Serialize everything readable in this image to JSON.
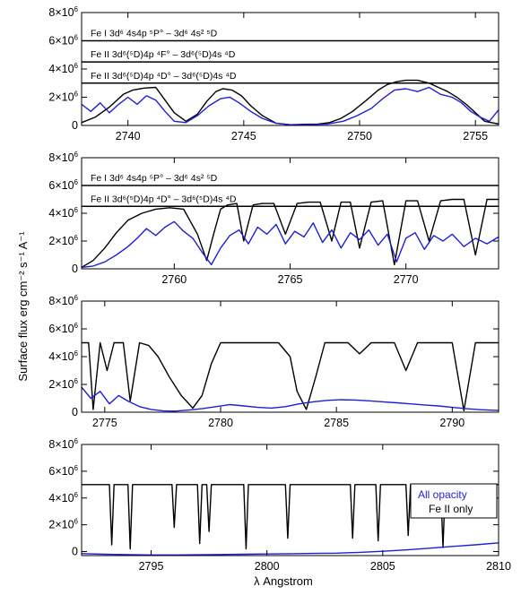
{
  "figure": {
    "ylabel": "Surface flux erg cm⁻² s⁻¹ A⁻¹",
    "xlabel": "λ Angstrom"
  },
  "legend": [
    {
      "label": "All opacity",
      "color": "#1f1fd6"
    },
    {
      "label": "Fe II only",
      "color": "#000000"
    }
  ],
  "chart_data": [
    {
      "type": "line",
      "xlim": [
        2738,
        2756
      ],
      "ylim": [
        0,
        8000000
      ],
      "xticks": [
        2740,
        2745,
        2750,
        2755
      ],
      "xtick_labels": [
        "2740",
        "2745",
        "2750",
        "2755"
      ],
      "yticks": [
        0,
        2000000,
        4000000,
        6000000,
        8000000
      ],
      "ytick_labels": [
        {
          "mant": "0",
          "exp": ""
        },
        {
          "mant": "2×10",
          "exp": "6"
        },
        {
          "mant": "4×10",
          "exp": "6"
        },
        {
          "mant": "6×10",
          "exp": "6"
        },
        {
          "mant": "8×10",
          "exp": "6"
        }
      ],
      "annotations": [
        {
          "text": "Fe I 3d⁶ 4s4p ⁵P° – 3d⁶ 4s² ⁵D",
          "level": 6000000
        },
        {
          "text": "Fe II 3d⁶(⁵D)4p ⁴F° – 3d⁶(⁵D)4s ⁴D",
          "level": 4500000
        },
        {
          "text": "Fe II 3d⁶(⁵D)4p ⁴D° – 3d⁶(⁵D)4s ⁴D",
          "level": 3000000
        }
      ],
      "series": [
        {
          "color": "#000000",
          "x": [
            2738,
            2738.6,
            2739.2,
            2739.8,
            2740.2,
            2740.7,
            2741.2,
            2741.6,
            2742.0,
            2742.5,
            2743.0,
            2743.4,
            2743.8,
            2744.1,
            2744.5,
            2744.9,
            2745.3,
            2745.8,
            2746.4,
            2747.0,
            2747.6,
            2748.2,
            2748.7,
            2749.2,
            2749.7,
            2750.3,
            2750.8,
            2751.2,
            2751.6,
            2752.0,
            2752.5,
            2753.0,
            2753.4,
            2753.8,
            2754.2,
            2754.6,
            2755.0,
            2755.4,
            2756
          ],
          "y": [
            200000,
            600000,
            1300000,
            2200000,
            2500000,
            2650000,
            2700000,
            1800000,
            900000,
            300000,
            800000,
            1700000,
            2400000,
            2600000,
            2500000,
            2100000,
            1400000,
            700000,
            150000,
            50000,
            80000,
            100000,
            200000,
            500000,
            1000000,
            1800000,
            2500000,
            2900000,
            3100000,
            3200000,
            3200000,
            3000000,
            2700000,
            2400000,
            2000000,
            1500000,
            900000,
            300000,
            100000
          ]
        },
        {
          "color": "#1f1fd6",
          "x": [
            2738,
            2738.4,
            2738.8,
            2739.2,
            2739.6,
            2740.0,
            2740.4,
            2740.8,
            2741.2,
            2741.6,
            2742.0,
            2742.5,
            2743.0,
            2743.5,
            2744.0,
            2744.4,
            2744.8,
            2745.3,
            2745.8,
            2746.4,
            2747.0,
            2747.8,
            2748.6,
            2749.3,
            2749.9,
            2750.5,
            2751.0,
            2751.5,
            2752.0,
            2752.5,
            2753.0,
            2753.5,
            2754.0,
            2754.4,
            2754.8,
            2755.2,
            2755.6,
            2756
          ],
          "y": [
            1500000,
            1000000,
            1600000,
            900000,
            1500000,
            2000000,
            1500000,
            2100000,
            1800000,
            1000000,
            300000,
            200000,
            700000,
            1400000,
            1900000,
            2000000,
            1600000,
            1000000,
            500000,
            150000,
            50000,
            60000,
            100000,
            300000,
            700000,
            1200000,
            1900000,
            2500000,
            2600000,
            2400000,
            2700000,
            2200000,
            2000000,
            1600000,
            1000000,
            600000,
            300000,
            1100000
          ]
        }
      ]
    },
    {
      "type": "line",
      "xlim": [
        2756,
        2774
      ],
      "ylim": [
        0,
        8000000
      ],
      "xticks": [
        2760,
        2765,
        2770
      ],
      "xtick_labels": [
        "2760",
        "2765",
        "2770"
      ],
      "yticks": [
        0,
        2000000,
        4000000,
        6000000,
        8000000
      ],
      "ytick_labels": [
        {
          "mant": "0",
          "exp": ""
        },
        {
          "mant": "2×10",
          "exp": "6"
        },
        {
          "mant": "4×10",
          "exp": "6"
        },
        {
          "mant": "6×10",
          "exp": "6"
        },
        {
          "mant": "8×10",
          "exp": "6"
        }
      ],
      "annotations": [
        {
          "text": "Fe I 3d⁶ 4s4p ⁵P° – 3d⁶ 4s² ⁵D",
          "level": 6000000
        },
        {
          "text": "Fe II 3d⁶(⁵D)4p ⁴D° – 3d⁶(⁵D)4s ⁴D",
          "level": 4500000
        }
      ],
      "series": [
        {
          "color": "#000000",
          "x": [
            2756,
            2756.5,
            2757,
            2757.5,
            2758,
            2758.6,
            2759.2,
            2759.8,
            2760.4,
            2761.0,
            2761.4,
            2761.7,
            2762.0,
            2762.3,
            2762.7,
            2763.0,
            2763.4,
            2763.8,
            2764.3,
            2764.8,
            2765.3,
            2765.8,
            2766.3,
            2766.8,
            2767.2,
            2767.6,
            2768.0,
            2768.5,
            2769.0,
            2769.5,
            2770.0,
            2770.5,
            2771.0,
            2771.5,
            2772.0,
            2772.5,
            2773.0,
            2773.5,
            2774
          ],
          "y": [
            100000,
            600000,
            1500000,
            2600000,
            3500000,
            4000000,
            4300000,
            4400000,
            4300000,
            2500000,
            600000,
            2500000,
            4300000,
            4600000,
            4700000,
            2000000,
            4600000,
            4700000,
            4700000,
            2500000,
            4700000,
            4800000,
            4800000,
            2000000,
            4800000,
            4800000,
            1500000,
            4800000,
            4900000,
            300000,
            4900000,
            4900000,
            2000000,
            4900000,
            5000000,
            5000000,
            1000000,
            5000000,
            5000000
          ]
        },
        {
          "color": "#1f1fd6",
          "x": [
            2756,
            2756.5,
            2757,
            2757.5,
            2758.0,
            2758.4,
            2758.8,
            2759.2,
            2759.6,
            2760.0,
            2760.4,
            2760.8,
            2761.2,
            2761.6,
            2762.0,
            2762.4,
            2762.8,
            2763.2,
            2763.6,
            2764.0,
            2764.4,
            2764.8,
            2765.2,
            2765.6,
            2766.0,
            2766.4,
            2766.8,
            2767.2,
            2767.6,
            2768.0,
            2768.4,
            2768.8,
            2769.2,
            2769.6,
            2770.0,
            2770.4,
            2770.8,
            2771.2,
            2771.6,
            2772.0,
            2772.5,
            2773.0,
            2773.5,
            2774
          ],
          "y": [
            100000,
            200000,
            500000,
            1000000,
            1600000,
            2200000,
            2900000,
            2400000,
            3000000,
            3400000,
            2700000,
            2200000,
            1200000,
            300000,
            1500000,
            2400000,
            2800000,
            1800000,
            3000000,
            2500000,
            3200000,
            1800000,
            2700000,
            2300000,
            3300000,
            1900000,
            2800000,
            1500000,
            2600000,
            2100000,
            2800000,
            1700000,
            2500000,
            500000,
            2200000,
            2600000,
            1400000,
            2400000,
            2000000,
            2500000,
            1600000,
            2200000,
            1800000,
            2300000
          ]
        }
      ]
    },
    {
      "type": "line",
      "xlim": [
        2774,
        2792
      ],
      "ylim": [
        0,
        8000000
      ],
      "xticks": [
        2775,
        2780,
        2785,
        2790
      ],
      "xtick_labels": [
        "2775",
        "2780",
        "2785",
        "2790"
      ],
      "yticks": [
        0,
        2000000,
        4000000,
        6000000,
        8000000
      ],
      "ytick_labels": [
        {
          "mant": "0",
          "exp": ""
        },
        {
          "mant": "2×10",
          "exp": "6"
        },
        {
          "mant": "4×10",
          "exp": "6"
        },
        {
          "mant": "6×10",
          "exp": "6"
        },
        {
          "mant": "8×10",
          "exp": "6"
        }
      ],
      "annotations": [],
      "series": [
        {
          "color": "#000000",
          "x": [
            2774,
            2774.3,
            2774.5,
            2774.8,
            2775.1,
            2775.4,
            2775.8,
            2776.1,
            2776.5,
            2776.9,
            2777.3,
            2777.8,
            2778.3,
            2778.8,
            2779.2,
            2779.6,
            2780.0,
            2780.5,
            2781.0,
            2781.5,
            2782.0,
            2782.5,
            2783.0,
            2783.3,
            2783.7,
            2784.1,
            2784.5,
            2785.0,
            2785.5,
            2786.0,
            2786.5,
            2787.0,
            2787.5,
            2788.0,
            2788.5,
            2789.0,
            2789.5,
            2790.0,
            2790.5,
            2791.0,
            2791.5,
            2792
          ],
          "y": [
            5000000,
            5000000,
            200000,
            5000000,
            3000000,
            5000000,
            5000000,
            800000,
            5000000,
            4800000,
            4000000,
            2500000,
            1200000,
            300000,
            1200000,
            3500000,
            5000000,
            5000000,
            5000000,
            5000000,
            5000000,
            5000000,
            4000000,
            1500000,
            200000,
            2500000,
            5000000,
            5000000,
            5000000,
            4200000,
            5000000,
            5000000,
            5000000,
            3000000,
            5000000,
            5000000,
            5000000,
            5000000,
            100000,
            5000000,
            5000000,
            5000000
          ]
        },
        {
          "color": "#1f1fd6",
          "x": [
            2774,
            2774.4,
            2774.8,
            2775.2,
            2775.6,
            2776.0,
            2776.5,
            2777.0,
            2777.5,
            2778.0,
            2778.6,
            2779.2,
            2779.8,
            2780.4,
            2781.0,
            2781.6,
            2782.2,
            2782.8,
            2783.4,
            2784.0,
            2784.6,
            2785.2,
            2785.8,
            2786.4,
            2787.0,
            2787.6,
            2788.2,
            2788.8,
            2789.4,
            2790.0,
            2790.6,
            2791.2,
            2792
          ],
          "y": [
            1800000,
            1000000,
            1500000,
            600000,
            1200000,
            800000,
            400000,
            200000,
            100000,
            80000,
            150000,
            250000,
            400000,
            550000,
            450000,
            350000,
            300000,
            400000,
            600000,
            750000,
            850000,
            900000,
            880000,
            820000,
            750000,
            680000,
            600000,
            520000,
            450000,
            350000,
            250000,
            180000,
            120000
          ]
        }
      ]
    },
    {
      "type": "line",
      "xlim": [
        2792,
        2810
      ],
      "ylim": [
        -300000,
        8000000
      ],
      "xticks": [
        2795,
        2800,
        2805,
        2810
      ],
      "xtick_labels": [
        "2795",
        "2800",
        "2805",
        "2810"
      ],
      "yticks": [
        0,
        2000000,
        4000000,
        6000000,
        8000000
      ],
      "ytick_labels": [
        {
          "mant": "0",
          "exp": ""
        },
        {
          "mant": "2×10",
          "exp": "6"
        },
        {
          "mant": "4×10",
          "exp": "6"
        },
        {
          "mant": "6×10",
          "exp": "6"
        },
        {
          "mant": "8×10",
          "exp": "6"
        }
      ],
      "annotations": [],
      "series": [
        {
          "color": "#000000",
          "x": [
            2792,
            2793.2,
            2793.3,
            2793.4,
            2794.0,
            2794.1,
            2794.2,
            2795.0,
            2795.9,
            2796.0,
            2796.1,
            2797.0,
            2797.1,
            2797.2,
            2797.4,
            2797.5,
            2797.6,
            2799.0,
            2799.1,
            2799.2,
            2800.8,
            2800.9,
            2801.0,
            2802.0,
            2803.6,
            2803.7,
            2803.8,
            2804.7,
            2804.8,
            2804.9,
            2806.0,
            2806.1,
            2806.2,
            2807.5,
            2807.6,
            2807.7,
            2809.0,
            2810
          ],
          "y": [
            5000000,
            5000000,
            500000,
            5000000,
            5000000,
            200000,
            5000000,
            5000000,
            5000000,
            1800000,
            5000000,
            5000000,
            600000,
            5000000,
            5000000,
            1500000,
            5000000,
            5000000,
            200000,
            5000000,
            5000000,
            1000000,
            5000000,
            5000000,
            5000000,
            1000000,
            5000000,
            5000000,
            800000,
            5000000,
            5000000,
            1200000,
            5000000,
            5000000,
            300000,
            5000000,
            5000000,
            5000000
          ]
        },
        {
          "color": "#1f1fd6",
          "x": [
            2792,
            2793,
            2794,
            2795,
            2796,
            2797,
            2798,
            2799,
            2800,
            2801,
            2802,
            2803,
            2804,
            2805,
            2806,
            2807,
            2808,
            2809,
            2810
          ],
          "y": [
            -150000,
            -200000,
            -230000,
            -250000,
            -250000,
            -240000,
            -220000,
            -200000,
            -180000,
            -160000,
            -140000,
            -120000,
            -60000,
            20000,
            120000,
            250000,
            380000,
            500000,
            650000
          ]
        }
      ]
    }
  ]
}
